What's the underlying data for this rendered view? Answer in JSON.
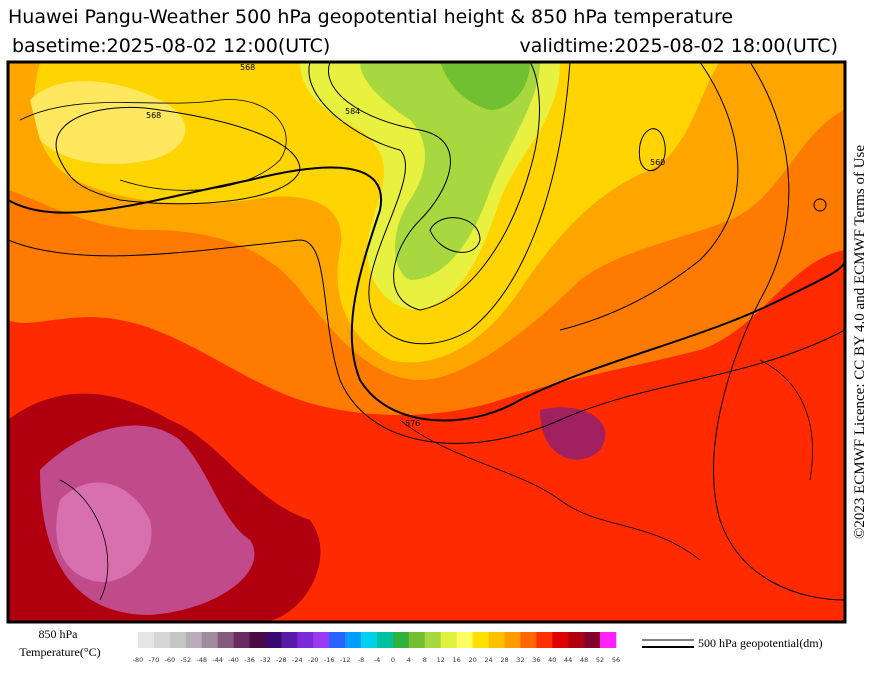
{
  "header": {
    "title": "Huawei Pangu-Weather 500 hPa geopotential height & 850 hPa temperature",
    "basetime": "basetime:2025-08-02 12:00(UTC)",
    "validtime": "validtime:2025-08-02 18:00(UTC)"
  },
  "map": {
    "contour_labels": [
      "568",
      "568",
      "560",
      "576",
      "584"
    ]
  },
  "licence": "©2023 ECMWF Licence: CC BY 4.0 and ECMWF Terms of Use",
  "colorbar": {
    "title_line1": "850 hPa",
    "title_line2": "Temperature(°C)",
    "ticks": [
      -80,
      -70,
      -60,
      -52,
      -48,
      -44,
      -40,
      -36,
      -32,
      -28,
      -24,
      -20,
      -16,
      -12,
      -8,
      -4,
      0,
      4,
      8,
      12,
      16,
      20,
      24,
      28,
      32,
      36,
      40,
      44,
      48,
      52,
      56
    ],
    "colors": [
      "#e6e6e6",
      "#d6d6d6",
      "#c6c6c6",
      "#b7acb7",
      "#a08aa0",
      "#865a80",
      "#6a2c60",
      "#4a0a48",
      "#3a0a70",
      "#5a1aa8",
      "#7a2ad8",
      "#9a3af4",
      "#2a60ff",
      "#009cff",
      "#00d0f0",
      "#00c0a0",
      "#30b040",
      "#70c030",
      "#a8d840",
      "#e0f040",
      "#ffff60",
      "#ffe000",
      "#ffc000",
      "#ff9c00",
      "#ff6800",
      "#ff3000",
      "#e00000",
      "#b00010",
      "#800030",
      "#ff20ff"
    ]
  },
  "legend": {
    "label": "500 hPa geopotential(dm)"
  }
}
